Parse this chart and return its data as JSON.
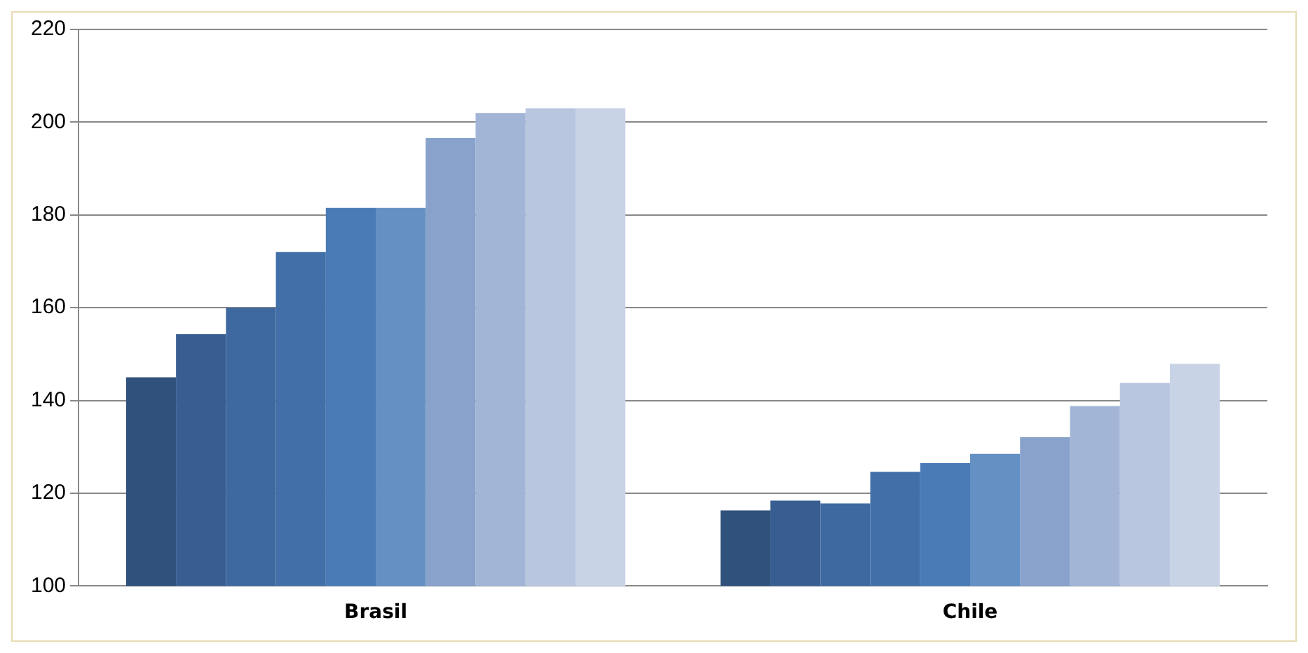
{
  "chart_data": {
    "type": "bar",
    "categories": [
      "Brasil",
      "Chile"
    ],
    "series": [
      {
        "color": "#30517c",
        "values": [
          145,
          116.3
        ]
      },
      {
        "color": "#385e91",
        "values": [
          154.3,
          118.4
        ]
      },
      {
        "color": "#3e68a0",
        "values": [
          160,
          117.8
        ]
      },
      {
        "color": "#426fa8",
        "values": [
          172,
          124.6
        ]
      },
      {
        "color": "#4a7bb7",
        "values": [
          181.5,
          126.5
        ]
      },
      {
        "color": "#6590c4",
        "values": [
          181.5,
          128.5
        ]
      },
      {
        "color": "#88a2cb",
        "values": [
          196.6,
          132.1
        ]
      },
      {
        "color": "#a3b5d6",
        "values": [
          202,
          138.8
        ]
      },
      {
        "color": "#b8c6e0",
        "values": [
          203,
          143.8
        ]
      },
      {
        "color": "#c9d3e6",
        "values": [
          203,
          147.9
        ]
      }
    ],
    "ylim": [
      100,
      220
    ],
    "yticks": [
      100,
      120,
      140,
      160,
      180,
      200,
      220
    ],
    "grid": "y",
    "legend": false
  }
}
